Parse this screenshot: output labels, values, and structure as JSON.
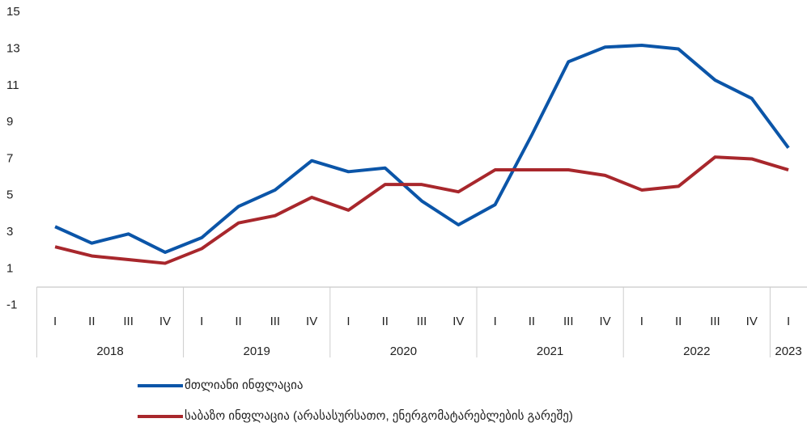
{
  "chart_data": {
    "type": "line",
    "categories": [
      "I",
      "II",
      "III",
      "IV",
      "I",
      "II",
      "III",
      "IV",
      "I",
      "II",
      "III",
      "IV",
      "I",
      "II",
      "III",
      "IV",
      "I",
      "II",
      "III",
      "IV",
      "I"
    ],
    "years": [
      "2018",
      "2019",
      "2020",
      "2021",
      "2022",
      "2023"
    ],
    "series": [
      {
        "name": "მთლიანი ინფლაცია",
        "color": "#0b55a8",
        "values": [
          3.3,
          2.4,
          2.9,
          1.9,
          2.7,
          4.4,
          5.3,
          6.9,
          6.3,
          6.5,
          4.7,
          3.4,
          4.5,
          8.3,
          12.3,
          13.1,
          13.2,
          13.0,
          11.3,
          10.3,
          7.6
        ]
      },
      {
        "name": "საბაზო ინფლაცია (არასასურსათო, ენერგომატარებლების გარეშე)",
        "color": "#a8272c",
        "values": [
          2.2,
          1.7,
          1.5,
          1.3,
          2.1,
          3.5,
          3.9,
          4.9,
          4.2,
          5.6,
          5.6,
          5.2,
          6.4,
          6.4,
          6.4,
          6.1,
          5.3,
          5.5,
          7.1,
          7.0,
          6.4
        ]
      }
    ],
    "ylim": [
      -1,
      15
    ],
    "yticks": [
      -1,
      1,
      3,
      5,
      7,
      9,
      11,
      13,
      15
    ],
    "legend": "bottom"
  }
}
